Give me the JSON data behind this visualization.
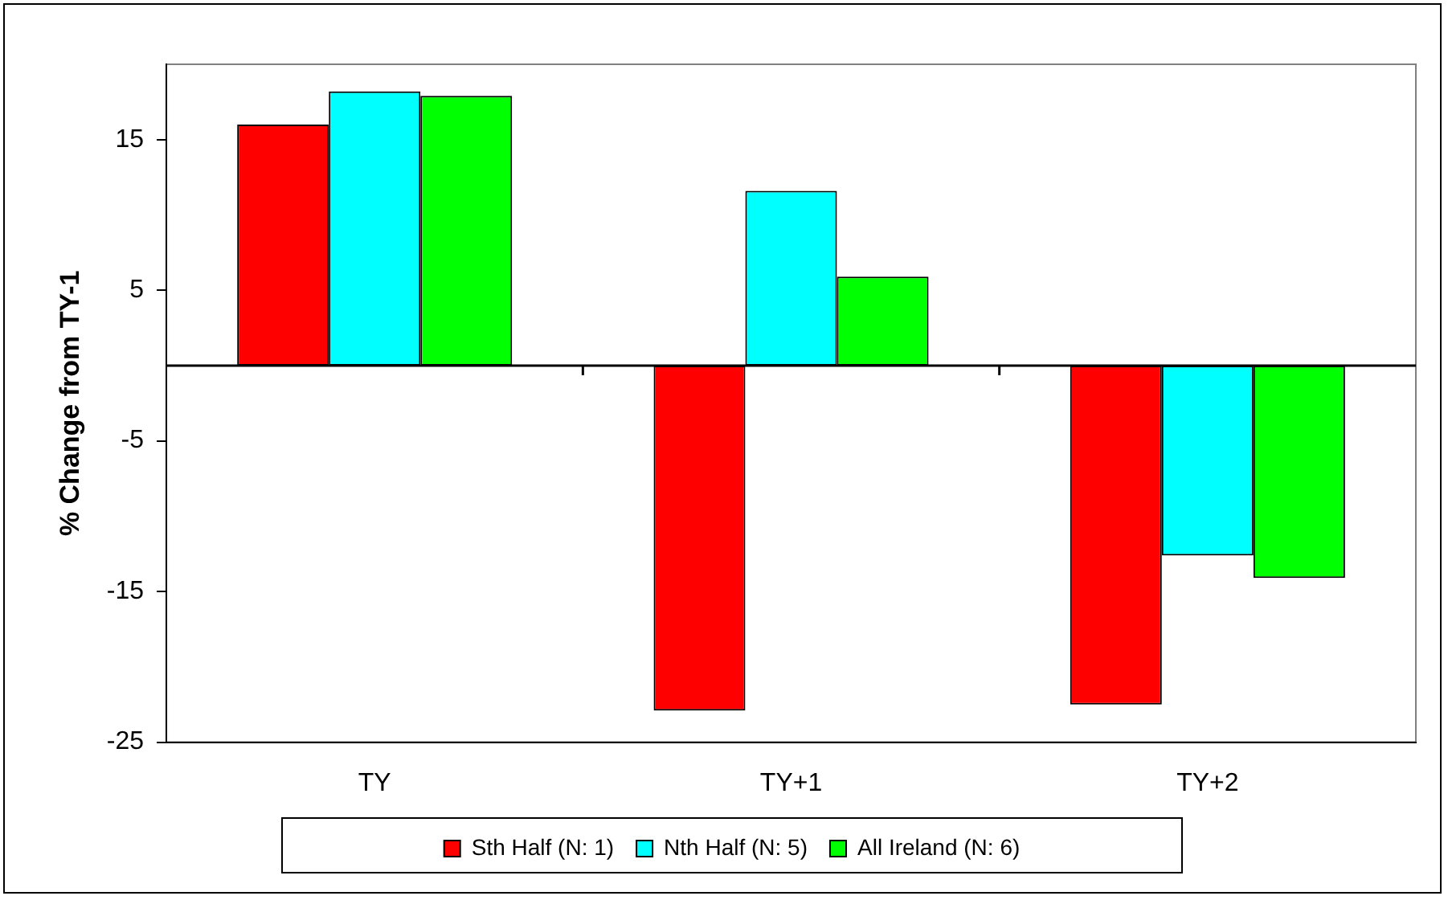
{
  "chart_data": {
    "type": "bar",
    "ylabel": "% Change from TY-1",
    "categories": [
      "TY",
      "TY+1",
      "TY+2"
    ],
    "series": [
      {
        "name": "Sth Half (N: 1)",
        "color": "#ff0000",
        "values": [
          16.0,
          -22.9,
          -22.5
        ]
      },
      {
        "name": "Nth Half (N: 5)",
        "color": "#00ffff",
        "values": [
          18.2,
          11.6,
          -12.6
        ]
      },
      {
        "name": "All Ireland (N: 6)",
        "color": "#00ff00",
        "values": [
          17.9,
          5.9,
          -14.1
        ]
      }
    ],
    "ylim": [
      -25,
      20
    ],
    "yticks": [
      -25,
      -15,
      -5,
      5,
      15
    ],
    "grid": false,
    "legend": "bottom"
  }
}
